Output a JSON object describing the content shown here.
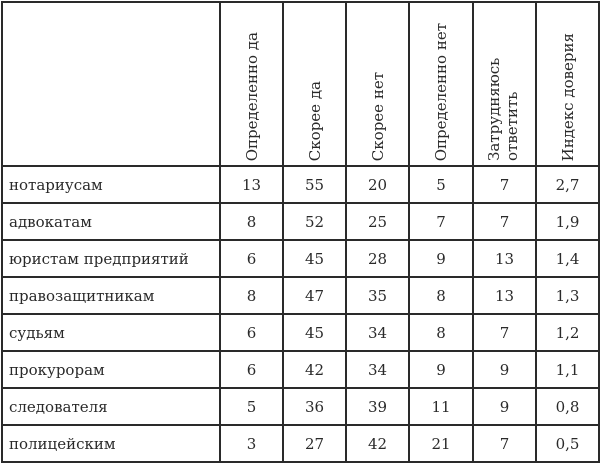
{
  "table": {
    "columns": [
      "",
      "Определенно да",
      "Скорее да",
      "Скорее нет",
      "Определенно нет",
      "Затрудняюсь ответить",
      "Индекс доверия"
    ],
    "rows": [
      {
        "label": "нотариусам",
        "values": [
          "13",
          "55",
          "20",
          "5",
          "7",
          "2,7"
        ]
      },
      {
        "label": "адвокатам",
        "values": [
          "8",
          "52",
          "25",
          "7",
          "7",
          "1,9"
        ]
      },
      {
        "label": "юристам предприятий",
        "values": [
          "6",
          "45",
          "28",
          "9",
          "13",
          "1,4"
        ]
      },
      {
        "label": "правозащитникам",
        "values": [
          "8",
          "47",
          "35",
          "8",
          "13",
          "1,3"
        ]
      },
      {
        "label": "судьям",
        "values": [
          "6",
          "45",
          "34",
          "8",
          "7",
          "1,2"
        ]
      },
      {
        "label": "прокурорам",
        "values": [
          "6",
          "42",
          "34",
          "9",
          "9",
          "1,1"
        ]
      },
      {
        "label": "следователя",
        "values": [
          "5",
          "36",
          "39",
          "11",
          "9",
          "0,8"
        ]
      },
      {
        "label": "полицейским",
        "values": [
          "3",
          "27",
          "42",
          "21",
          "7",
          "0,5"
        ]
      }
    ]
  }
}
